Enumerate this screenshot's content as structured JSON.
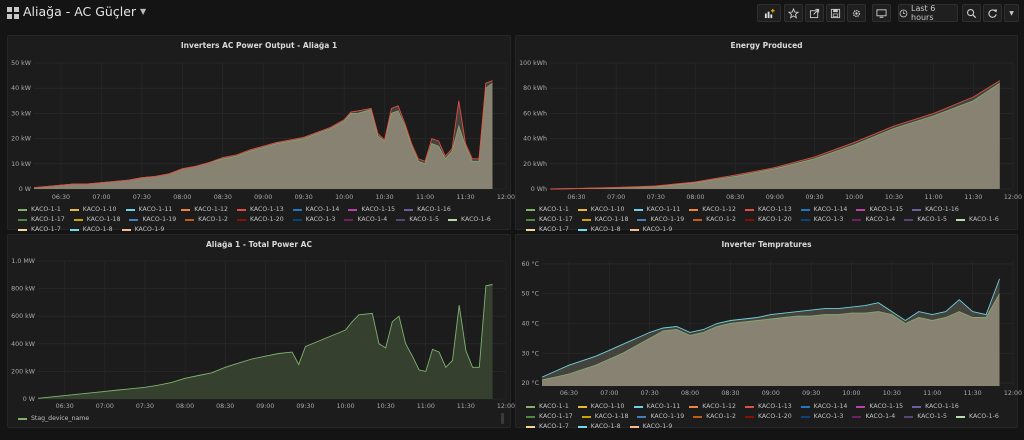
{
  "header": {
    "title": "Aliağa - AC Güçler",
    "time_range": "Last 6 hours",
    "buttons": [
      "add-panel",
      "star",
      "share",
      "save",
      "settings",
      "cycle-view",
      "time-picker",
      "zoom-out",
      "refresh",
      "refresh-interval"
    ]
  },
  "colors": {
    "background": "#141414",
    "panel": "#1c1c1c",
    "grid": "#2b2b2d",
    "series_fill": "#8f8a78",
    "total_fill": "#384230",
    "total_line": "#7eb26d"
  },
  "series_legend": [
    {
      "name": "KACO-1-1",
      "color": "#7eb26d"
    },
    {
      "name": "KACO-1-10",
      "color": "#eab839"
    },
    {
      "name": "KACO-1-11",
      "color": "#6ed0e0"
    },
    {
      "name": "KACO-1-12",
      "color": "#ef843c"
    },
    {
      "name": "KACO-1-13",
      "color": "#e24d42"
    },
    {
      "name": "KACO-1-14",
      "color": "#1f78c1"
    },
    {
      "name": "KACO-1-15",
      "color": "#ba43a9"
    },
    {
      "name": "KACO-1-16",
      "color": "#705da0"
    },
    {
      "name": "KACO-1-17",
      "color": "#508642"
    },
    {
      "name": "KACO-1-18",
      "color": "#cca300"
    },
    {
      "name": "KACO-1-19",
      "color": "#447ebc"
    },
    {
      "name": "KACO-1-2",
      "color": "#c15c17"
    },
    {
      "name": "KACO-1-20",
      "color": "#890f02"
    },
    {
      "name": "KACO-1-3",
      "color": "#0a437c"
    },
    {
      "name": "KACO-1-4",
      "color": "#6d1f62"
    },
    {
      "name": "KACO-1-5",
      "color": "#584477"
    },
    {
      "name": "KACO-1-6",
      "color": "#b7dbab"
    },
    {
      "name": "KACO-1-7",
      "color": "#f4d598"
    },
    {
      "name": "KACO-1-8",
      "color": "#70dbed"
    },
    {
      "name": "KACO-1-9",
      "color": "#f9ba8f"
    }
  ],
  "chart_data": [
    {
      "type": "area",
      "title": "Inverters AC Power Output - Aliağa 1",
      "x_ticks": [
        "06:30",
        "07:00",
        "07:30",
        "08:00",
        "08:30",
        "09:00",
        "09:30",
        "10:00",
        "10:30",
        "11:00",
        "11:30",
        "12:00"
      ],
      "y_ticks": [
        "0 W",
        "10 kW",
        "20 kW",
        "30 kW",
        "40 kW",
        "50 kW"
      ],
      "ylim": [
        0,
        50
      ],
      "y_unit": "kW",
      "x": [
        "06:10",
        "06:20",
        "06:30",
        "06:40",
        "06:50",
        "07:00",
        "07:10",
        "07:20",
        "07:30",
        "07:40",
        "07:50",
        "08:00",
        "08:10",
        "08:20",
        "08:30",
        "08:40",
        "08:50",
        "09:00",
        "09:10",
        "09:20",
        "09:30",
        "09:40",
        "09:50",
        "10:00",
        "10:05",
        "10:10",
        "10:20",
        "10:25",
        "10:30",
        "10:35",
        "10:40",
        "10:45",
        "10:50",
        "10:55",
        "11:00",
        "11:05",
        "11:10",
        "11:15",
        "11:20",
        "11:25",
        "11:30",
        "11:35",
        "11:40",
        "11:45",
        "11:50"
      ],
      "series": [
        {
          "name": "KACO-1-1",
          "values": [
            0.5,
            1,
            1.5,
            2,
            2,
            2.5,
            3,
            3.5,
            4.5,
            5,
            6,
            8,
            9,
            10.5,
            12,
            13,
            15,
            16.5,
            18,
            19,
            20,
            22,
            24,
            27,
            30,
            30,
            31.5,
            21,
            19,
            30,
            31,
            25,
            17,
            11,
            10,
            18,
            17,
            12,
            15,
            25,
            17,
            11,
            11,
            40,
            42
          ]
        },
        {
          "name": "KACO-1-13",
          "values": [
            0.5,
            1,
            1.5,
            2,
            2,
            2.5,
            3,
            3.5,
            4.5,
            5,
            6,
            8,
            9,
            10.5,
            12.5,
            13.5,
            15.5,
            17,
            18.5,
            19.5,
            20.5,
            22.5,
            24.5,
            27.5,
            30.5,
            31,
            32,
            22,
            19.5,
            32,
            33,
            26,
            18,
            12,
            11,
            20,
            19,
            13,
            16,
            35,
            18,
            12,
            12,
            42,
            43
          ]
        }
      ]
    },
    {
      "type": "area",
      "title": "Energy Produced",
      "x_ticks": [
        "06:30",
        "07:00",
        "07:30",
        "08:00",
        "08:30",
        "09:00",
        "09:30",
        "10:00",
        "10:30",
        "11:00",
        "11:30",
        "12:00"
      ],
      "y_ticks": [
        "0 Wh",
        "20 kWh",
        "40 kWh",
        "60 kWh",
        "80 kWh",
        "100 kWh"
      ],
      "ylim": [
        0,
        100
      ],
      "y_unit": "kWh",
      "x": [
        "06:10",
        "06:30",
        "07:00",
        "07:30",
        "08:00",
        "08:30",
        "09:00",
        "09:30",
        "10:00",
        "10:30",
        "11:00",
        "11:30",
        "11:50"
      ],
      "series": [
        {
          "name": "KACO-1-1",
          "values": [
            0,
            0.3,
            1,
            2,
            5,
            10,
            16,
            24,
            35,
            48,
            58,
            70,
            84
          ]
        },
        {
          "name": "KACO-1-13",
          "values": [
            0,
            0.4,
            1.2,
            2.4,
            5.6,
            11,
            17,
            25.5,
            37,
            50,
            60,
            73,
            86
          ]
        }
      ]
    },
    {
      "type": "area",
      "title": "Aliağa 1 - Total Power AC",
      "x_ticks": [
        "06:30",
        "07:00",
        "07:30",
        "08:00",
        "08:30",
        "09:00",
        "09:30",
        "10:00",
        "10:30",
        "11:00",
        "11:30",
        "12:00"
      ],
      "y_ticks": [
        "0 W",
        "200 kW",
        "400 kW",
        "600 kW",
        "800 kW",
        "1.0 MW"
      ],
      "ylim": [
        0,
        1000
      ],
      "y_unit": "kW",
      "x": [
        "06:10",
        "06:20",
        "06:30",
        "06:40",
        "06:50",
        "07:00",
        "07:10",
        "07:20",
        "07:30",
        "07:40",
        "07:50",
        "08:00",
        "08:10",
        "08:20",
        "08:30",
        "08:40",
        "08:50",
        "09:00",
        "09:10",
        "09:20",
        "09:25",
        "09:30",
        "09:40",
        "09:50",
        "10:00",
        "10:05",
        "10:10",
        "10:20",
        "10:25",
        "10:30",
        "10:35",
        "10:40",
        "10:45",
        "10:50",
        "10:55",
        "11:00",
        "11:05",
        "11:10",
        "11:15",
        "11:20",
        "11:25",
        "11:30",
        "11:35",
        "11:40",
        "11:45",
        "11:50"
      ],
      "series": [
        {
          "name": "Stag_device_name",
          "values": [
            5,
            15,
            25,
            35,
            45,
            55,
            65,
            75,
            85,
            100,
            120,
            150,
            170,
            190,
            230,
            260,
            290,
            310,
            330,
            340,
            250,
            380,
            420,
            460,
            500,
            560,
            610,
            620,
            400,
            370,
            560,
            600,
            400,
            310,
            210,
            200,
            360,
            340,
            230,
            280,
            680,
            350,
            230,
            230,
            820,
            830
          ]
        }
      ]
    },
    {
      "type": "area",
      "title": "Inverter Tempratures",
      "x_ticks": [
        "06:30",
        "07:00",
        "07:30",
        "08:00",
        "08:30",
        "09:00",
        "09:30",
        "10:00",
        "10:30",
        "11:00",
        "11:30",
        "12:00"
      ],
      "y_ticks": [
        "20 °C",
        "30 °C",
        "40 °C",
        "50 °C",
        "60 °C"
      ],
      "ylim": [
        19,
        61
      ],
      "y_unit": "°C",
      "x": [
        "06:10",
        "06:20",
        "06:30",
        "06:40",
        "06:50",
        "07:00",
        "07:10",
        "07:20",
        "07:30",
        "07:40",
        "07:50",
        "08:00",
        "08:10",
        "08:20",
        "08:30",
        "08:40",
        "08:50",
        "09:00",
        "09:10",
        "09:20",
        "09:30",
        "09:40",
        "09:50",
        "10:00",
        "10:10",
        "10:20",
        "10:30",
        "10:40",
        "10:50",
        "11:00",
        "11:10",
        "11:20",
        "11:30",
        "11:40",
        "11:50"
      ],
      "series": [
        {
          "name": "KACO-1-1",
          "values": [
            21,
            22,
            23,
            24.5,
            26,
            28,
            30,
            32.5,
            35,
            37.5,
            38,
            36,
            37,
            39,
            40,
            40.5,
            41,
            41.5,
            42,
            42.5,
            42.5,
            43,
            43,
            43.5,
            43.5,
            44,
            43,
            40,
            42,
            41,
            42,
            44,
            42,
            42,
            50
          ]
        },
        {
          "name": "KACO-1-11",
          "values": [
            22,
            24,
            26,
            27.5,
            29,
            31,
            33,
            35,
            37,
            38.5,
            39,
            37,
            38,
            40,
            41,
            41.5,
            42,
            43,
            43.5,
            44,
            44.5,
            45,
            45,
            45.5,
            46,
            47,
            44,
            41,
            44,
            43,
            44,
            48,
            44,
            43,
            55
          ]
        }
      ]
    }
  ]
}
